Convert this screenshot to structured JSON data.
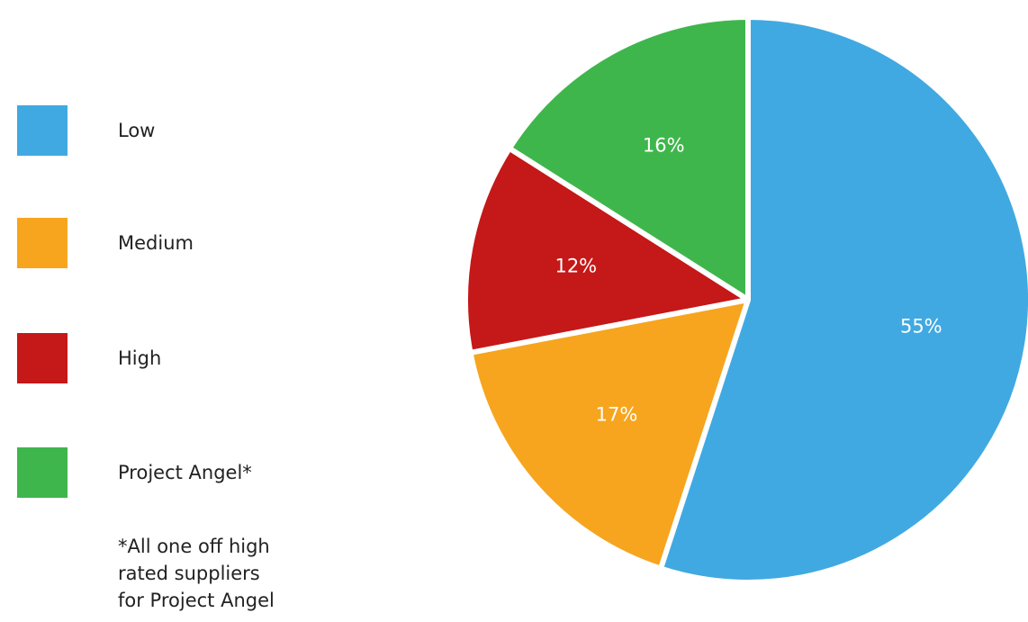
{
  "chart_data": {
    "type": "pie",
    "categories": [
      "Low",
      "Medium",
      "High",
      "Project Angel*"
    ],
    "values": [
      55,
      17,
      12,
      16
    ],
    "value_labels": [
      "55%",
      "17%",
      "12%",
      "16%"
    ],
    "colors": [
      "#41a9e1",
      "#f7a51e",
      "#c51818",
      "#3fb64c"
    ],
    "legend_position": "left",
    "legend_note": "*All one off high\nrated suppliers\nfor Project Angel",
    "start_angle_deg": 0,
    "direction": "clockwise"
  }
}
